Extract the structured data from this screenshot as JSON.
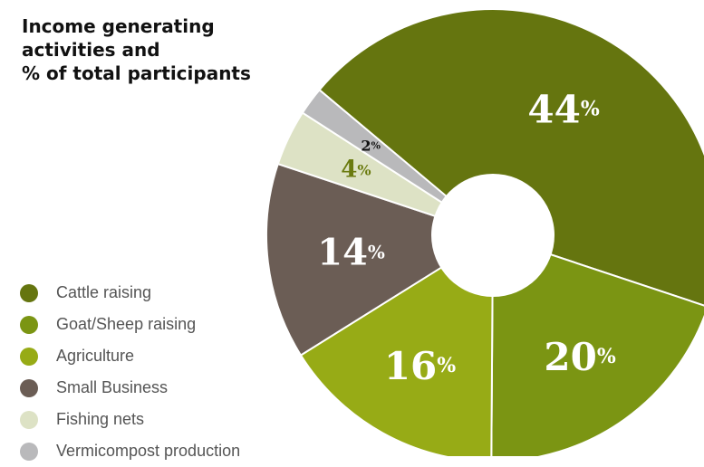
{
  "title_lines": [
    "Income generating",
    "activities and",
    "% of total participants"
  ],
  "chart_data": {
    "type": "pie",
    "donut": true,
    "title": "Income generating activities and % of total participants",
    "legend_position": "bottom-left",
    "unit": "%",
    "categories": [
      "Cattle raising",
      "Goat/Sheep raising",
      "Agriculture",
      "Small Business",
      "Fishing nets",
      "Vermicompost production"
    ],
    "values": [
      44,
      20,
      16,
      14,
      4,
      2
    ],
    "colors": [
      "#65750f",
      "#7b9513",
      "#97ab16",
      "#6b5d55",
      "#dde2c5",
      "#b9b9bb"
    ],
    "label_colors": [
      "#ffffff",
      "#ffffff",
      "#ffffff",
      "#ffffff",
      "#6b7b10",
      "#111111"
    ]
  }
}
